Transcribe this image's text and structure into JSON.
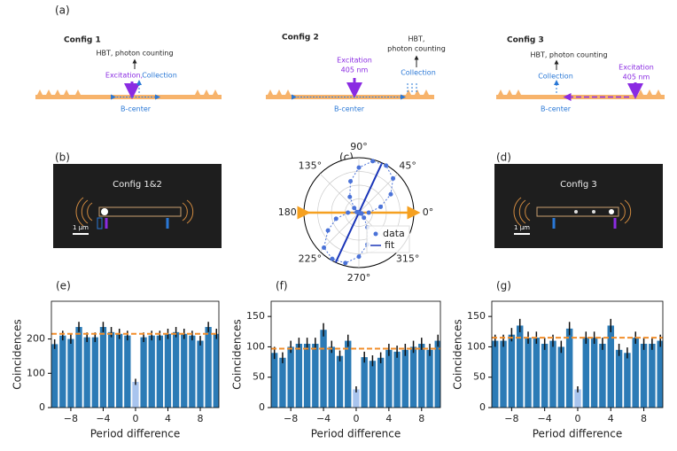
{
  "figure": {
    "panel_a": "(a)",
    "panel_b": "(b)",
    "panel_d": "(d)",
    "config1": {
      "title": "Config 1",
      "hbt": "HBT, photon counting",
      "excitation": "Excitation,",
      "collection": "Collection",
      "center": "B-center"
    },
    "config2": {
      "title": "Config 2",
      "hbt": [
        "HBT,",
        "photon counting"
      ],
      "excitation": [
        "Excitation",
        "405 nm"
      ],
      "collection": "Collection",
      "center": "B-center"
    },
    "config3": {
      "title": "Config 3",
      "hbt": "HBT, photon counting",
      "collection": "Collection",
      "excitation": [
        "Excitation",
        "405 nm"
      ],
      "center": "B-center"
    },
    "image_b": {
      "label": "Config 1&2",
      "scale": "1 μm"
    },
    "image_d": {
      "label": "Config 3",
      "scale": "1 μm"
    }
  },
  "chart_data": [
    {
      "type": "polar",
      "panel": "(c)",
      "thetaticks": [
        {
          "value": 0,
          "label": "0°"
        },
        {
          "value": 45,
          "label": "45°"
        },
        {
          "value": 90,
          "label": "90°"
        },
        {
          "value": 135,
          "label": "135°"
        },
        {
          "value": 180,
          "label": "180°"
        },
        {
          "value": 225,
          "label": "225°"
        },
        {
          "value": 270,
          "label": "270°"
        },
        {
          "value": 315,
          "label": "315°"
        }
      ],
      "rlim": [
        0,
        1
      ],
      "rticks": [
        0.25,
        0.5,
        0.75,
        1
      ],
      "excitation_angle": 0,
      "excitation_color": "#f5a020",
      "series": [
        {
          "name": "data",
          "color": "#4a72d8",
          "theta": [
            0,
            15,
            30,
            45,
            60,
            75,
            90,
            105,
            120,
            135,
            150,
            165,
            180,
            195,
            210,
            225,
            240,
            255,
            270,
            285,
            300,
            315,
            330,
            345
          ],
          "r": [
            0.18,
            0.41,
            0.67,
            0.88,
            0.99,
            0.97,
            0.82,
            0.59,
            0.33,
            0.12,
            0.02,
            0.04,
            0.2,
            0.43,
            0.65,
            0.9,
            0.97,
            0.95,
            0.8,
            0.6,
            0.31,
            0.13,
            0.03,
            0.05
          ]
        },
        {
          "name": "fit",
          "color": "#1a35b8",
          "angle": 65
        }
      ]
    },
    {
      "type": "bar",
      "panel": "(e)",
      "ylabel": "Coincidences",
      "xlabel": "Period difference",
      "x": [
        -10,
        -9,
        -8,
        -7,
        -6,
        -5,
        -4,
        -3,
        -2,
        -1,
        0,
        1,
        2,
        3,
        4,
        5,
        6,
        7,
        8,
        9,
        10
      ],
      "values": [
        185,
        210,
        200,
        235,
        205,
        205,
        235,
        220,
        215,
        210,
        75,
        205,
        210,
        210,
        215,
        220,
        215,
        210,
        195,
        235,
        215
      ],
      "errors": [
        14,
        14,
        14,
        15,
        14,
        14,
        15,
        15,
        15,
        14,
        9,
        14,
        14,
        14,
        15,
        15,
        15,
        14,
        14,
        15,
        15
      ],
      "mean": 215,
      "color": "#2c7bb6",
      "highlight_x": 0,
      "highlight_color": "#a8c4ee",
      "mean_color": "#f28e2b",
      "xlim": [
        -10.4,
        10.3
      ],
      "ylim": [
        0,
        310
      ],
      "xticks": [
        {
          "value": -8,
          "label": "−8"
        },
        {
          "value": -4,
          "label": "−4"
        },
        0,
        4,
        8
      ],
      "yticks": [
        0,
        100,
        200
      ]
    },
    {
      "type": "bar",
      "panel": "(f)",
      "ylabel": "Coincidences",
      "xlabel": "Period difference",
      "x": [
        -10,
        -9,
        -8,
        -7,
        -6,
        -5,
        -4,
        -3,
        -2,
        -1,
        0,
        1,
        2,
        3,
        4,
        5,
        6,
        7,
        8,
        9,
        10
      ],
      "values": [
        90,
        82,
        100,
        105,
        105,
        105,
        128,
        100,
        85,
        110,
        30,
        83,
        77,
        82,
        95,
        92,
        95,
        100,
        105,
        95,
        110
      ],
      "errors": [
        10,
        9,
        10,
        10,
        10,
        10,
        11,
        10,
        9,
        10,
        5,
        9,
        9,
        9,
        10,
        10,
        10,
        10,
        10,
        10,
        10
      ],
      "mean": 97,
      "color": "#2c7bb6",
      "highlight_x": 0,
      "highlight_color": "#a8c4ee",
      "mean_color": "#f28e2b",
      "xlim": [
        -10.4,
        10.3
      ],
      "ylim": [
        0,
        175
      ],
      "xticks": [
        {
          "value": -8,
          "label": "−8"
        },
        {
          "value": -4,
          "label": "−4"
        },
        0,
        4,
        8
      ],
      "yticks": [
        0,
        50,
        100,
        150
      ]
    },
    {
      "type": "bar",
      "panel": "(g)",
      "ylabel": "Coincidences",
      "xlabel": "Period difference",
      "x": [
        -10,
        -9,
        -8,
        -7,
        -6,
        -5,
        -4,
        -3,
        -2,
        -1,
        0,
        1,
        2,
        3,
        4,
        5,
        6,
        7,
        8,
        9,
        10
      ],
      "values": [
        110,
        110,
        120,
        135,
        115,
        115,
        105,
        110,
        100,
        130,
        30,
        115,
        115,
        105,
        135,
        95,
        90,
        115,
        105,
        105,
        110
      ],
      "errors": [
        10,
        10,
        11,
        11,
        10,
        10,
        10,
        10,
        10,
        11,
        5,
        10,
        10,
        10,
        11,
        10,
        9,
        10,
        10,
        10,
        10
      ],
      "mean": 115,
      "color": "#2c7bb6",
      "highlight_x": 0,
      "highlight_color": "#a8c4ee",
      "mean_color": "#f28e2b",
      "xlim": [
        -10.4,
        10.3
      ],
      "ylim": [
        0,
        175
      ],
      "xticks": [
        {
          "value": -8,
          "label": "−8"
        },
        {
          "value": -4,
          "label": "−4"
        },
        0,
        4,
        8
      ],
      "yticks": [
        0,
        50,
        100,
        150
      ]
    }
  ]
}
